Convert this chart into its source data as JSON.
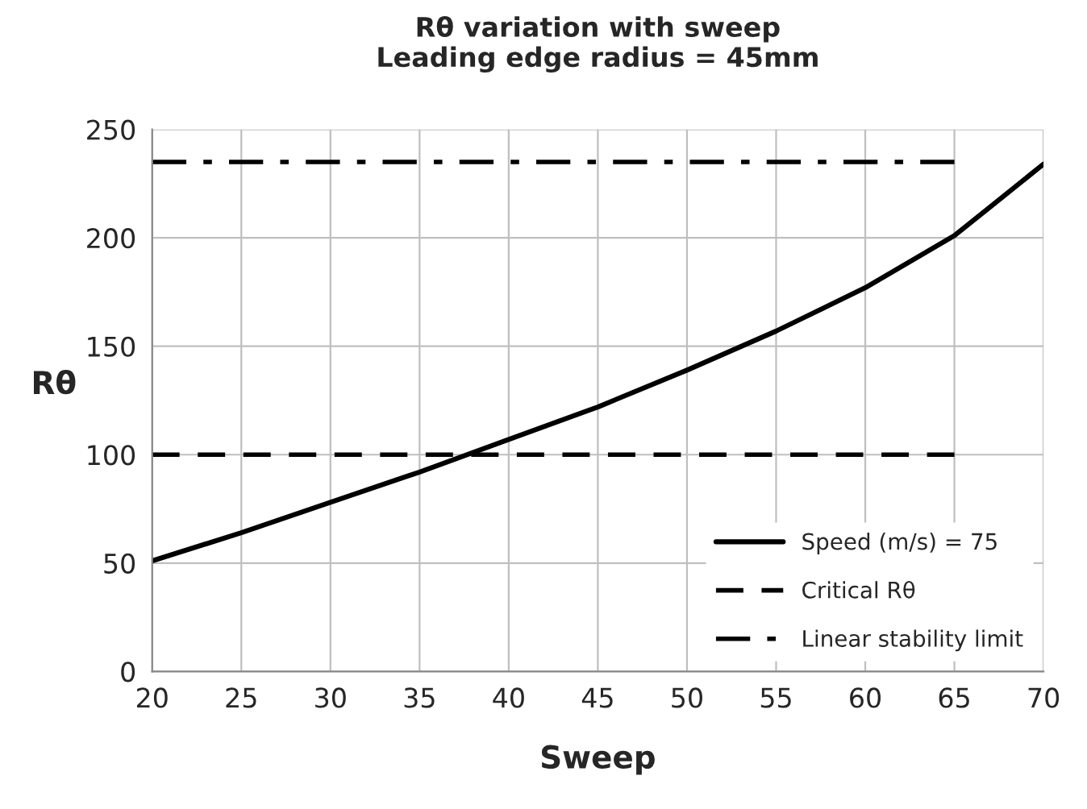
{
  "chart_data": {
    "type": "line",
    "title": "Rθ variation with sweep\nLeading edge radius = 45mm",
    "xlabel": "Sweep",
    "ylabel": "Rθ",
    "xlim": [
      20,
      70
    ],
    "xticks": [
      20,
      25,
      30,
      35,
      40,
      45,
      50,
      55,
      60,
      65,
      70
    ],
    "ylim": [
      0,
      250
    ],
    "yticks": [
      0,
      50,
      100,
      150,
      200,
      250
    ],
    "grid": true,
    "legend": "bottom right",
    "marker": "none",
    "series": [
      {
        "name": "Speed (m/s) = 75",
        "color": "#000000",
        "line_style": "solid",
        "x": [
          20,
          25,
          30,
          35,
          40,
          45,
          50,
          55,
          60,
          65,
          70
        ],
        "values": [
          51,
          64,
          78,
          92,
          107,
          122,
          139,
          157,
          177,
          201,
          234
        ]
      },
      {
        "name": "Critical Rθ",
        "color": "#000000",
        "line_style": "dashed",
        "x": [
          20,
          65
        ],
        "values": [
          100,
          100
        ]
      },
      {
        "name": "Linear stability limit",
        "color": "#000000",
        "line_style": "dashdot",
        "x": [
          20,
          65
        ],
        "values": [
          235,
          235
        ]
      }
    ]
  }
}
